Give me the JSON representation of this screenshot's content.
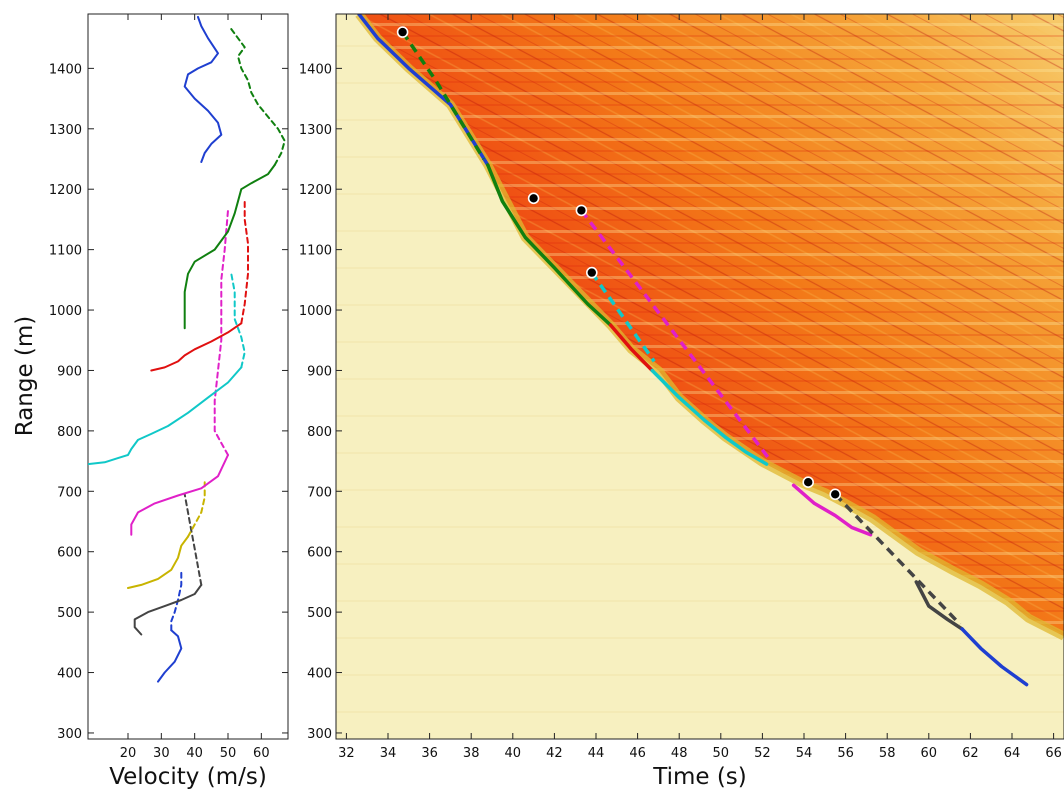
{
  "chart_data": [
    {
      "type": "line",
      "xlabel": "Velocity (m/s)",
      "ylabel": "Range (m)",
      "xlim": [
        8,
        68
      ],
      "ylim": [
        290,
        1490
      ],
      "xticks": [
        20,
        30,
        40,
        50,
        60
      ],
      "yticks": [
        300,
        400,
        500,
        600,
        700,
        800,
        900,
        1000,
        1100,
        1200,
        1300,
        1400
      ],
      "series": [
        {
          "color": "#1f3fd0",
          "dashed": false,
          "points": [
            [
              29,
              385
            ],
            [
              31,
              400
            ],
            [
              34,
              418
            ],
            [
              36,
              440
            ],
            [
              35,
              460
            ],
            [
              33,
              470
            ]
          ]
        },
        {
          "color": "#1f3fd0",
          "dashed": true,
          "points": [
            [
              33,
              470
            ],
            [
              33,
              485
            ],
            [
              34,
              500
            ],
            [
              35,
              520
            ],
            [
              36,
              545
            ],
            [
              36,
              565
            ]
          ]
        },
        {
          "color": "#444444",
          "dashed": false,
          "points": [
            [
              24,
              463
            ],
            [
              22,
              475
            ],
            [
              22,
              488
            ],
            [
              26,
              500
            ],
            [
              31,
              510
            ],
            [
              36,
              520
            ],
            [
              40,
              530
            ],
            [
              42,
              545
            ]
          ]
        },
        {
          "color": "#444444",
          "dashed": true,
          "points": [
            [
              42,
              545
            ],
            [
              41,
              575
            ],
            [
              40,
              605
            ],
            [
              39,
              635
            ],
            [
              38,
              665
            ],
            [
              37,
              695
            ]
          ]
        },
        {
          "color": "#c8b400",
          "dashed": false,
          "points": [
            [
              20,
              540
            ],
            [
              24,
              545
            ],
            [
              29,
              555
            ],
            [
              33,
              570
            ],
            [
              35,
              590
            ],
            [
              36,
              610
            ],
            [
              38,
              625
            ]
          ]
        },
        {
          "color": "#c8b400",
          "dashed": true,
          "points": [
            [
              38,
              625
            ],
            [
              40,
              645
            ],
            [
              42,
              665
            ],
            [
              43,
              690
            ],
            [
              43,
              715
            ]
          ]
        },
        {
          "color": "#e020c8",
          "dashed": false,
          "points": [
            [
              21,
              628
            ],
            [
              21,
              645
            ],
            [
              23,
              665
            ],
            [
              28,
              680
            ],
            [
              35,
              693
            ],
            [
              42,
              705
            ],
            [
              47,
              725
            ],
            [
              50,
              760
            ]
          ]
        },
        {
          "color": "#e020c8",
          "dashed": true,
          "points": [
            [
              50,
              760
            ],
            [
              48,
              780
            ],
            [
              46,
              800
            ],
            [
              46,
              850
            ],
            [
              47,
              900
            ],
            [
              48,
              950
            ],
            [
              48,
              1000
            ],
            [
              48,
              1050
            ],
            [
              49,
              1100
            ],
            [
              50,
              1165
            ]
          ]
        },
        {
          "color": "#10c8c8",
          "dashed": false,
          "points": [
            [
              8,
              745
            ],
            [
              13,
              748
            ],
            [
              17,
              755
            ],
            [
              20,
              760
            ],
            [
              21,
              770
            ],
            [
              23,
              785
            ],
            [
              27,
              795
            ],
            [
              32,
              808
            ],
            [
              38,
              830
            ],
            [
              44,
              855
            ],
            [
              50,
              880
            ],
            [
              54,
              905
            ]
          ]
        },
        {
          "color": "#10c8c8",
          "dashed": true,
          "points": [
            [
              54,
              905
            ],
            [
              55,
              930
            ],
            [
              54,
              955
            ],
            [
              52,
              985
            ],
            [
              52,
              1030
            ],
            [
              51,
              1060
            ]
          ]
        },
        {
          "color": "#e01010",
          "dashed": false,
          "points": [
            [
              27,
              900
            ],
            [
              31,
              905
            ],
            [
              35,
              915
            ],
            [
              37,
              925
            ],
            [
              40,
              935
            ],
            [
              45,
              948
            ],
            [
              50,
              963
            ],
            [
              54,
              978
            ]
          ]
        },
        {
          "color": "#e01010",
          "dashed": true,
          "points": [
            [
              54,
              978
            ],
            [
              55,
              1010
            ],
            [
              56,
              1060
            ],
            [
              56,
              1110
            ],
            [
              55,
              1150
            ],
            [
              55,
              1185
            ]
          ]
        },
        {
          "color": "#108010",
          "dashed": false,
          "points": [
            [
              37,
              970
            ],
            [
              37,
              1000
            ],
            [
              37,
              1030
            ],
            [
              38,
              1060
            ],
            [
              40,
              1080
            ],
            [
              46,
              1100
            ],
            [
              50,
              1130
            ],
            [
              52,
              1160
            ],
            [
              53,
              1180
            ],
            [
              54,
              1200
            ],
            [
              57,
              1210
            ],
            [
              62,
              1225
            ],
            [
              64,
              1240
            ]
          ]
        },
        {
          "color": "#108010",
          "dashed": true,
          "points": [
            [
              64,
              1240
            ],
            [
              66,
              1260
            ],
            [
              67,
              1280
            ],
            [
              65,
              1300
            ],
            [
              62,
              1320
            ],
            [
              59,
              1340
            ],
            [
              57,
              1360
            ],
            [
              56,
              1380
            ],
            [
              54,
              1400
            ],
            [
              53,
              1420
            ],
            [
              55,
              1435
            ],
            [
              53,
              1450
            ],
            [
              51,
              1465
            ]
          ]
        },
        {
          "color": "#1f3fd0",
          "dashed": false,
          "points": [
            [
              42,
              1245
            ],
            [
              43,
              1260
            ],
            [
              45,
              1275
            ],
            [
              48,
              1290
            ],
            [
              47,
              1310
            ],
            [
              44,
              1330
            ],
            [
              40,
              1350
            ],
            [
              37,
              1370
            ],
            [
              38,
              1390
            ],
            [
              41,
              1400
            ],
            [
              45,
              1410
            ],
            [
              47,
              1425
            ],
            [
              44,
              1450
            ],
            [
              42,
              1470
            ],
            [
              41,
              1485
            ]
          ]
        }
      ]
    },
    {
      "type": "heatmap",
      "xlabel": "Time (s)",
      "ylabel": "",
      "xlim": [
        31.5,
        66.5
      ],
      "ylim": [
        290,
        1490
      ],
      "xticks": [
        32,
        34,
        36,
        38,
        40,
        42,
        44,
        46,
        48,
        50,
        52,
        54,
        56,
        58,
        60,
        62,
        64,
        66
      ],
      "yticks": [
        300,
        400,
        500,
        600,
        700,
        800,
        900,
        1000,
        1100,
        1200,
        1300,
        1400
      ],
      "colormap": [
        "#f7f0c0",
        "#f7d060",
        "#f08a10",
        "#e01808"
      ],
      "edge": [
        [
          32.6,
          1490
        ],
        [
          33.5,
          1450
        ],
        [
          35,
          1400
        ],
        [
          37,
          1340
        ],
        [
          38.8,
          1240
        ],
        [
          40.6,
          1120
        ],
        [
          44.7,
          975
        ],
        [
          45.7,
          935
        ],
        [
          47,
          900
        ],
        [
          48,
          855
        ],
        [
          49.2,
          818
        ],
        [
          50.2,
          790
        ],
        [
          52,
          748
        ],
        [
          53,
          730
        ],
        [
          54,
          712
        ],
        [
          55,
          698
        ],
        [
          56,
          680
        ],
        [
          57.3,
          655
        ],
        [
          58.3,
          630
        ],
        [
          59.5,
          600
        ],
        [
          61.2,
          568
        ],
        [
          62.5,
          545
        ],
        [
          63.8,
          518
        ],
        [
          64.8,
          490
        ],
        [
          66.5,
          460
        ]
      ],
      "front_segments": [
        {
          "color": "#1f3fd0",
          "points": [
            [
              32.6,
              1490
            ],
            [
              33.5,
              1450
            ],
            [
              35,
              1400
            ],
            [
              37,
              1340
            ],
            [
              38.8,
              1240
            ]
          ]
        },
        {
          "color": "#108010",
          "points": [
            [
              38.8,
              1240
            ],
            [
              39.5,
              1180
            ],
            [
              40.6,
              1120
            ],
            [
              42,
              1070
            ],
            [
              43.6,
              1010
            ],
            [
              44.7,
              975
            ]
          ]
        },
        {
          "color": "#e01010",
          "points": [
            [
              44.7,
              975
            ],
            [
              45.7,
              935
            ],
            [
              46.7,
              900
            ]
          ]
        },
        {
          "color": "#10c8c8",
          "points": [
            [
              46.7,
              900
            ],
            [
              48,
              855
            ],
            [
              49.2,
              818
            ],
            [
              50.2,
              790
            ],
            [
              51.2,
              765
            ],
            [
              52.2,
              745
            ]
          ]
        },
        {
          "color": "#e020c8",
          "points": [
            [
              53.5,
              710
            ],
            [
              54.5,
              680
            ],
            [
              55.5,
              660
            ],
            [
              56.3,
              640
            ],
            [
              57.2,
              628
            ]
          ]
        },
        {
          "color": "#444444",
          "points": [
            [
              59.4,
              550
            ],
            [
              60,
              510
            ],
            [
              60.9,
              488
            ],
            [
              61.6,
              472
            ]
          ]
        },
        {
          "color": "#1f3fd0",
          "points": [
            [
              61.6,
              472
            ],
            [
              62.5,
              440
            ],
            [
              63.5,
              410
            ],
            [
              64.7,
              380
            ]
          ]
        }
      ],
      "dashed_lines": [
        {
          "color": "#108010",
          "points": [
            [
              34.7,
              1460
            ],
            [
              36.3,
              1380
            ],
            [
              38.6,
              1250
            ]
          ]
        },
        {
          "color": "#e020c8",
          "points": [
            [
              43.3,
              1165
            ],
            [
              52.3,
              755
            ]
          ]
        },
        {
          "color": "#10c8c8",
          "points": [
            [
              43.8,
              1062
            ],
            [
              46.8,
              915
            ]
          ]
        },
        {
          "color": "#444444",
          "points": [
            [
              55.5,
              695
            ],
            [
              61.5,
              480
            ]
          ]
        }
      ],
      "markers": [
        [
          34.7,
          1460
        ],
        [
          41,
          1185
        ],
        [
          43.3,
          1165
        ],
        [
          43.8,
          1062
        ],
        [
          54.2,
          715
        ],
        [
          55.5,
          695
        ]
      ]
    }
  ]
}
